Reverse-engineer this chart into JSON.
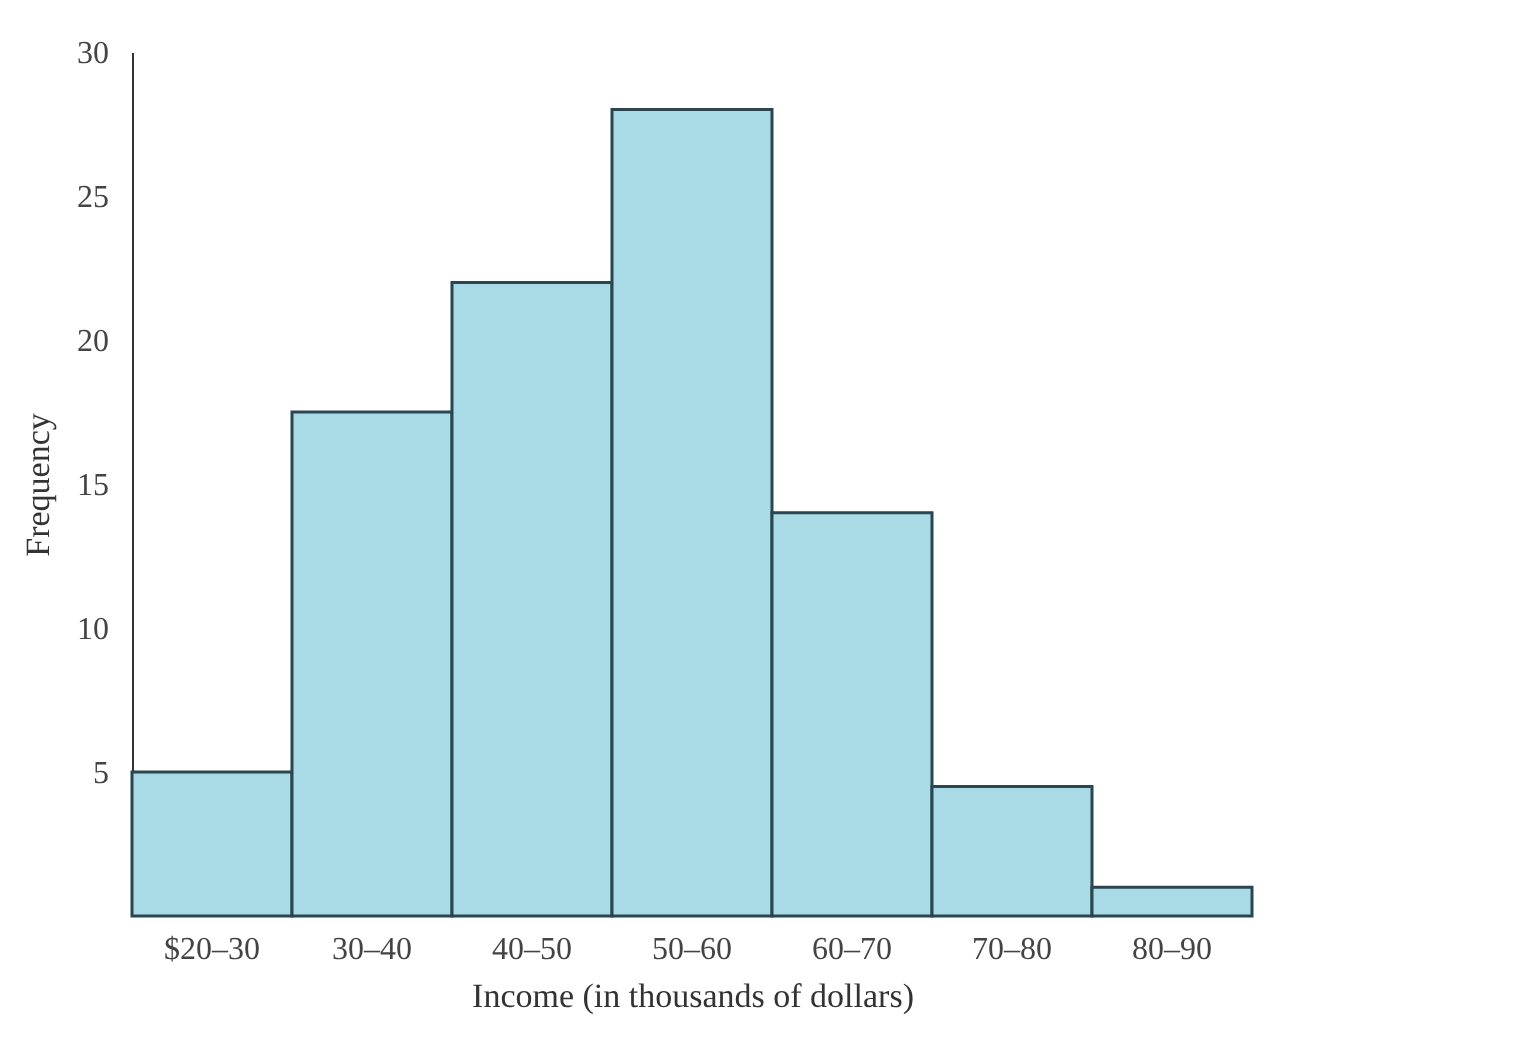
{
  "chart_data": {
    "type": "bar",
    "xlabel": "Income (in thousands of dollars)",
    "ylabel": "Frequency",
    "categories": [
      "$20–30",
      "30–40",
      "40–50",
      "50–60",
      "60–70",
      "70–80",
      "80–90"
    ],
    "values": [
      5,
      17.5,
      22,
      28,
      14,
      4.5,
      1
    ],
    "color": "#a8dbe6",
    "ylim": [
      0,
      30
    ],
    "yticks": [
      5,
      10,
      15,
      20,
      25,
      30
    ],
    "grid": false
  }
}
